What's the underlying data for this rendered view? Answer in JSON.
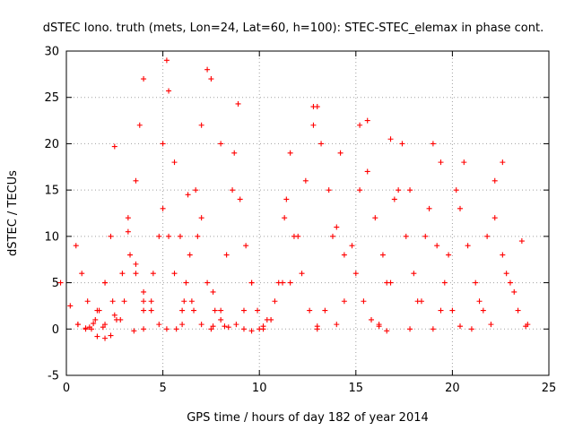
{
  "chart_data": {
    "type": "scatter",
    "title": "dSTEC Iono. truth (mets, Lon=24, Lat=60, h=100): STEC-STEC_elemax in phase cont.",
    "xlabel": "GPS time / hours of day 182 of year 2014",
    "ylabel": "dSTEC  / TECUs",
    "xlim": [
      0,
      25
    ],
    "ylim": [
      -5,
      30
    ],
    "xticks": [
      0,
      5,
      10,
      15,
      20,
      25
    ],
    "yticks": [
      -5,
      0,
      5,
      10,
      15,
      20,
      25,
      30
    ],
    "grid": true,
    "marker": "plus",
    "color": "#ff0000",
    "series": [
      {
        "x": [
          -0.3,
          0.2,
          0.6,
          1.0,
          1.3
        ],
        "y": [
          5,
          2.5,
          0.5,
          0,
          0
        ]
      },
      {
        "x": [
          0.5,
          0.8,
          1.1,
          1.5,
          1.9
        ],
        "y": [
          9,
          6,
          3,
          1,
          0.2
        ]
      },
      {
        "x": [
          0.6,
          1.0,
          1.4,
          1.7,
          2.0,
          2.3,
          2.5
        ],
        "y": [
          0.5,
          0.1,
          0.6,
          2,
          5,
          10,
          19.7
        ]
      },
      {
        "x": [
          1.2,
          1.6,
          2.0,
          2.4,
          2.8
        ],
        "y": [
          0.2,
          2,
          5,
          3,
          1
        ]
      },
      {
        "x": [
          1.6,
          2.0,
          2.3,
          2.6,
          2.9,
          3.2,
          3.6,
          4.0
        ],
        "y": [
          -0.8,
          -1,
          -0.7,
          1,
          6,
          12,
          6,
          2
        ]
      },
      {
        "x": [
          2.0,
          2.5,
          3.0,
          3.3,
          3.6,
          3.8,
          4.0
        ],
        "y": [
          0.5,
          1.5,
          3,
          8,
          16,
          22,
          27
        ]
      },
      {
        "x": [
          3.2,
          3.6,
          4.0,
          4.4,
          4.8,
          5.2
        ],
        "y": [
          10.5,
          7,
          4,
          2,
          0.5,
          0
        ]
      },
      {
        "x": [
          3.5,
          4.0,
          4.4,
          4.8,
          5.0,
          5.2
        ],
        "y": [
          -0.2,
          0,
          3,
          10,
          20,
          29
        ]
      },
      {
        "x": [
          4.0,
          4.5,
          5.0,
          5.3,
          5.6,
          6.0
        ],
        "y": [
          3,
          6,
          13,
          10,
          6,
          2
        ]
      },
      {
        "x": [
          5.3,
          5.6,
          5.9,
          6.2,
          6.6,
          7.0,
          7.5
        ],
        "y": [
          25.7,
          18,
          10,
          5,
          2,
          0.5,
          0
        ]
      },
      {
        "x": [
          5.7,
          6.1,
          6.4,
          6.7,
          7.0,
          7.3
        ],
        "y": [
          0,
          3,
          8,
          15,
          22,
          28
        ]
      },
      {
        "x": [
          6.0,
          6.5,
          7.0,
          7.5,
          8.0
        ],
        "y": [
          0.5,
          3,
          12,
          27,
          20
        ]
      },
      {
        "x": [
          6.3,
          6.8,
          7.3,
          7.7,
          8.2
        ],
        "y": [
          14.5,
          10,
          5,
          2,
          0.3
        ]
      },
      {
        "x": [
          7.6,
          8.0,
          8.4,
          8.8,
          9.2,
          9.6
        ],
        "y": [
          4,
          1,
          0.2,
          0.5,
          2,
          5
        ]
      },
      {
        "x": [
          7.6,
          8.0,
          8.3,
          8.6,
          8.9
        ],
        "y": [
          0.3,
          2,
          8,
          15,
          24.3
        ]
      },
      {
        "x": [
          8.7,
          9.0,
          9.3,
          9.6,
          9.9,
          10.2
        ],
        "y": [
          19,
          14,
          9,
          5,
          2,
          0.3
        ]
      },
      {
        "x": [
          9.2,
          9.6,
          10.0,
          10.4,
          10.8,
          11.2
        ],
        "y": [
          0,
          -0.2,
          0,
          1,
          3,
          5
        ]
      },
      {
        "x": [
          10.2,
          10.6,
          11.0,
          11.3,
          11.6
        ],
        "y": [
          0,
          1,
          5,
          12,
          19
        ]
      },
      {
        "x": [
          11.4,
          11.8,
          12.2,
          12.6,
          13.0
        ],
        "y": [
          14,
          10,
          6,
          2,
          0.3
        ]
      },
      {
        "x": [
          11.6,
          12.0,
          12.4,
          12.8,
          13.0
        ],
        "y": [
          5,
          10,
          16,
          22,
          24
        ]
      },
      {
        "x": [
          12.8,
          13.2,
          13.6,
          14.0,
          14.4
        ],
        "y": [
          24,
          20,
          15,
          11,
          8
        ]
      },
      {
        "x": [
          13.0,
          13.4,
          13.8,
          14.2
        ],
        "y": [
          0,
          2,
          10,
          19
        ]
      },
      {
        "x": [
          14.0,
          14.4,
          14.8,
          15.2,
          15.6
        ],
        "y": [
          0.5,
          3,
          9,
          15,
          22.5
        ]
      },
      {
        "x": [
          15.2,
          15.6,
          16.0,
          16.4,
          16.8
        ],
        "y": [
          22,
          17,
          12,
          8,
          5
        ]
      },
      {
        "x": [
          15.0,
          15.4,
          15.8,
          16.2,
          16.6
        ],
        "y": [
          6,
          3,
          1,
          0.3,
          -0.2
        ]
      },
      {
        "x": [
          16.2,
          16.6,
          17.0,
          17.4,
          17.8
        ],
        "y": [
          0.5,
          5,
          14,
          20,
          15
        ]
      },
      {
        "x": [
          16.8,
          17.2,
          17.6,
          18.0,
          18.4
        ],
        "y": [
          20.5,
          15,
          10,
          6,
          3
        ]
      },
      {
        "x": [
          17.8,
          18.2,
          18.6,
          19.0,
          19.4
        ],
        "y": [
          0,
          3,
          10,
          20,
          18
        ]
      },
      {
        "x": [
          18.8,
          19.2,
          19.6,
          20.0,
          20.4
        ],
        "y": [
          13,
          9,
          5,
          2,
          0.3
        ]
      },
      {
        "x": [
          19.0,
          19.4,
          19.8,
          20.2,
          20.6
        ],
        "y": [
          0,
          2,
          8,
          15,
          18
        ]
      },
      {
        "x": [
          20.4,
          20.8,
          21.2,
          21.6,
          22.0
        ],
        "y": [
          13,
          9,
          5,
          2,
          0.5
        ]
      },
      {
        "x": [
          21.0,
          21.4,
          21.8,
          22.2,
          22.6
        ],
        "y": [
          0,
          3,
          10,
          16,
          18
        ]
      },
      {
        "x": [
          22.2,
          22.6,
          23.0,
          23.4,
          23.8
        ],
        "y": [
          12,
          8,
          5,
          2,
          0.3
        ]
      },
      {
        "x": [
          22.8,
          23.2,
          23.6,
          23.9
        ],
        "y": [
          6,
          4,
          9.5,
          0.5
        ]
      }
    ]
  }
}
